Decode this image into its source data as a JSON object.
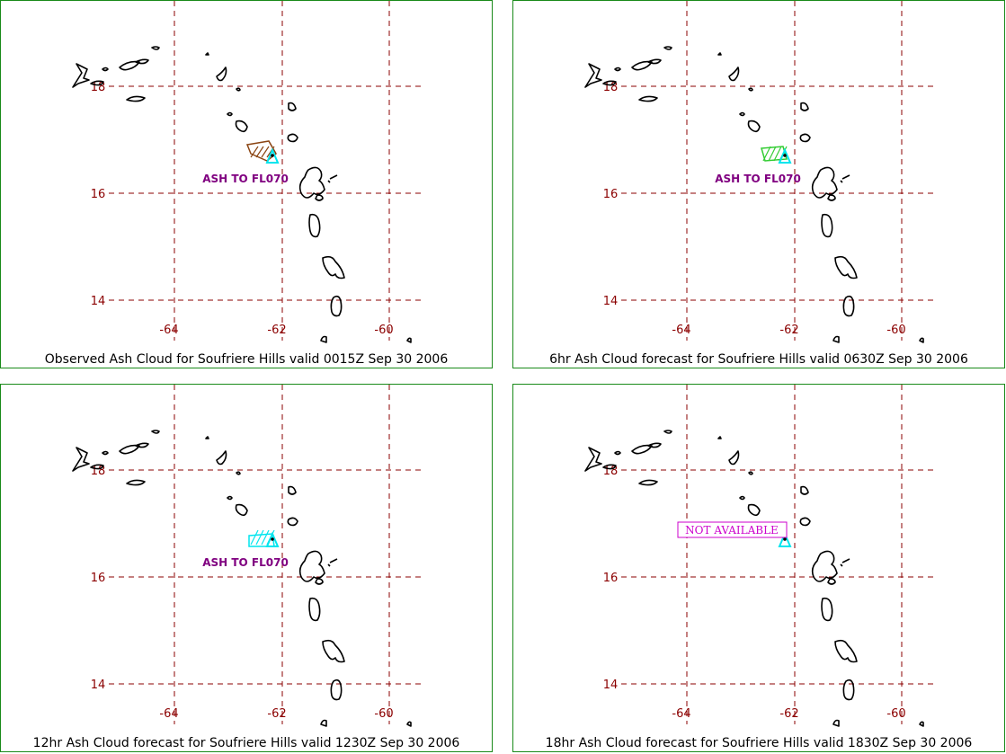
{
  "panels": [
    {
      "id": "observed",
      "caption": "Observed Ash Cloud for Soufriere  Hills valid 0015Z Sep 30 2006",
      "annotation": "ASH TO FL070",
      "ash_color": "#8b4513",
      "status": ""
    },
    {
      "id": "6hr",
      "caption": "6hr Ash Cloud forecast for Soufriere  Hills valid 0630Z Sep 30 2006",
      "annotation": "ASH TO FL070",
      "ash_color": "#33cc33",
      "status": ""
    },
    {
      "id": "12hr",
      "caption": "12hr Ash Cloud forecast for Soufriere  Hills valid 1230Z Sep 30 2006",
      "annotation": "ASH TO FL070",
      "ash_color": "#00e5ee",
      "status": ""
    },
    {
      "id": "18hr",
      "caption": "18hr Ash Cloud forecast for Soufriere  Hills valid 1830Z Sep 30 2006",
      "annotation": "",
      "ash_color": "",
      "status": "NOT AVAILABLE"
    }
  ],
  "grid": {
    "lat_labels": [
      "18",
      "16",
      "14"
    ],
    "lon_labels": [
      "-64",
      "-62",
      "-60"
    ],
    "line_color": "#8b0000"
  },
  "volcano": {
    "marker": "triangle-icon",
    "marker_color": "#00e5ee"
  }
}
